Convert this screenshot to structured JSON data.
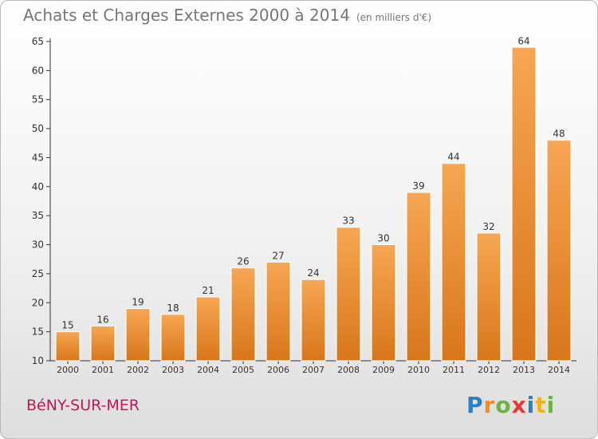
{
  "title": "Achats et Charges Externes 2000 à 2014",
  "unit": "(en milliers d'€)",
  "city": "BéNY-SUR-MER",
  "logo": {
    "letters": [
      "P",
      "r",
      "o",
      "x",
      "i",
      "t",
      "i"
    ],
    "colors": [
      "#2b7fc3",
      "#f08c1c",
      "#6db33f",
      "#e53935",
      "#2b7fc3",
      "#f0b21c",
      "#6db33f"
    ]
  },
  "chart_data": {
    "type": "bar",
    "categories": [
      "2000",
      "2001",
      "2002",
      "2003",
      "2004",
      "2005",
      "2006",
      "2007",
      "2008",
      "2009",
      "2010",
      "2011",
      "2012",
      "2013",
      "2014"
    ],
    "values": [
      15,
      16,
      19,
      18,
      21,
      26,
      27,
      24,
      33,
      30,
      39,
      44,
      32,
      64,
      48
    ],
    "title": "Achats et Charges Externes 2000 à 2014",
    "xlabel": "",
    "ylabel": "",
    "ylim": [
      10,
      65
    ],
    "yticks": [
      10,
      15,
      20,
      25,
      30,
      35,
      40,
      45,
      50,
      55,
      60,
      65
    ],
    "grid": false,
    "legend": "none",
    "bar_color_top": "#f7a653",
    "bar_color_bottom": "#d8761a",
    "axis_color": "#333333",
    "text_color": "#333333"
  }
}
